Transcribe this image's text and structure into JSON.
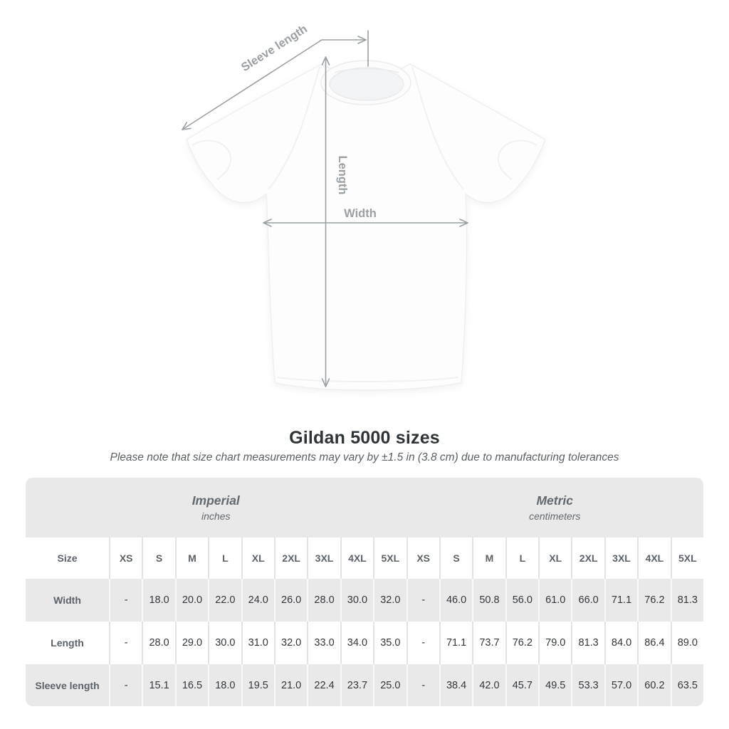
{
  "diagram": {
    "labels": {
      "sleeve_length": "Sleeve length",
      "length": "Length",
      "width": "Width"
    }
  },
  "chart_data": {
    "type": "table",
    "title": "Gildan 5000 sizes",
    "subtitle": "Please note that size chart measurements may vary by ±1.5 in (3.8 cm) due to manufacturing tolerances",
    "unit_groups": [
      {
        "label": "Imperial",
        "sublabel": "inches"
      },
      {
        "label": "Metric",
        "sublabel": "centimeters"
      }
    ],
    "corner_header": "Size",
    "sizes": [
      "XS",
      "S",
      "M",
      "L",
      "XL",
      "2XL",
      "3XL",
      "4XL",
      "5XL"
    ],
    "rows": [
      {
        "label": "Width",
        "imperial": [
          "-",
          "18.0",
          "20.0",
          "22.0",
          "24.0",
          "26.0",
          "28.0",
          "30.0",
          "32.0"
        ],
        "metric": [
          "-",
          "46.0",
          "50.8",
          "56.0",
          "61.0",
          "66.0",
          "71.1",
          "76.2",
          "81.3"
        ]
      },
      {
        "label": "Length",
        "imperial": [
          "-",
          "28.0",
          "29.0",
          "30.0",
          "31.0",
          "32.0",
          "33.0",
          "34.0",
          "35.0"
        ],
        "metric": [
          "-",
          "71.1",
          "73.7",
          "76.2",
          "79.0",
          "81.3",
          "84.0",
          "86.4",
          "89.0"
        ]
      },
      {
        "label": "Sleeve length",
        "imperial": [
          "-",
          "15.1",
          "16.5",
          "18.0",
          "19.5",
          "21.0",
          "22.4",
          "23.7",
          "25.0"
        ],
        "metric": [
          "-",
          "38.4",
          "42.0",
          "45.7",
          "49.5",
          "53.3",
          "57.0",
          "60.2",
          "63.5"
        ]
      }
    ]
  },
  "colors": {
    "table_band_grey": "#e9e9e9",
    "header_text_grey": "#5b6269",
    "value_text": "#33373b",
    "arrow_grey": "#9aa0a4",
    "title_text": "#2f3438"
  }
}
